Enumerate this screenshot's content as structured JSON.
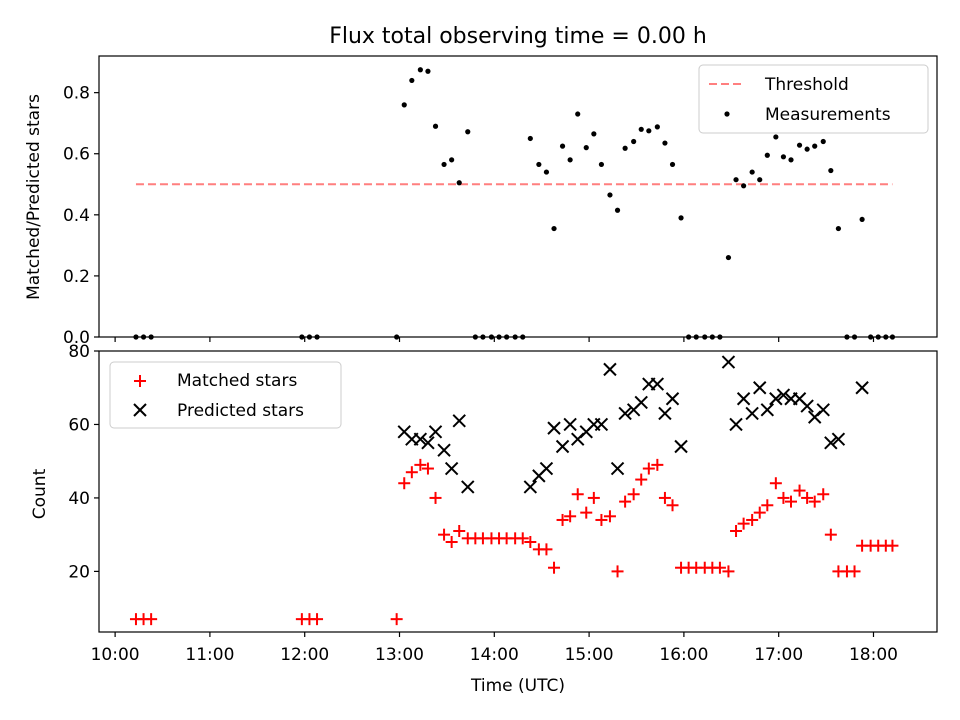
{
  "figure": {
    "title": "Flux total observing time = 0.00 h"
  },
  "chart_data": [
    {
      "type": "scatter",
      "ylabel": "Matched/Predicted stars",
      "xlim": [
        9.83,
        18.67
      ],
      "ylim": [
        0.0,
        0.92
      ],
      "yticks": [
        0.0,
        0.2,
        0.4,
        0.6,
        0.8
      ],
      "xtick_labels_shown": false,
      "legend": {
        "placement": "upper-right"
      },
      "threshold": {
        "name": "Threshold",
        "y": 0.5,
        "x_range": [
          10.22,
          18.2
        ],
        "color": "#ff7f7f",
        "style": "dashed"
      },
      "series": [
        {
          "name": "Measurements",
          "marker": "dot",
          "color": "#000000",
          "x": [
            10.22,
            10.3,
            10.38,
            11.97,
            12.05,
            12.13,
            12.97,
            13.05,
            13.13,
            13.22,
            13.3,
            13.38,
            13.47,
            13.55,
            13.63,
            13.72,
            13.8,
            13.88,
            13.97,
            14.05,
            14.13,
            14.22,
            14.3,
            14.38,
            14.47,
            14.55,
            14.63,
            14.72,
            14.8,
            14.88,
            14.97,
            15.05,
            15.13,
            15.22,
            15.3,
            15.38,
            15.47,
            15.55,
            15.63,
            15.72,
            15.8,
            15.88,
            15.97,
            16.05,
            16.13,
            16.22,
            16.3,
            16.38,
            16.47,
            16.55,
            16.63,
            16.72,
            16.8,
            16.88,
            16.97,
            17.05,
            17.13,
            17.22,
            17.3,
            17.38,
            17.47,
            17.55,
            17.63,
            17.72,
            17.8,
            17.88,
            17.97,
            18.05,
            18.13,
            18.2
          ],
          "y": [
            0.0,
            0.0,
            0.0,
            0.0,
            0.0,
            0.0,
            0.0,
            0.76,
            0.84,
            0.875,
            0.87,
            0.69,
            0.565,
            0.58,
            0.505,
            0.672,
            0.0,
            0.0,
            0.0,
            0.0,
            0.0,
            0.0,
            0.0,
            0.65,
            0.565,
            0.54,
            0.355,
            0.625,
            0.58,
            0.73,
            0.62,
            0.665,
            0.565,
            0.465,
            0.415,
            0.618,
            0.64,
            0.68,
            0.675,
            0.688,
            0.635,
            0.565,
            0.39,
            0.0,
            0.0,
            0.0,
            0.0,
            0.0,
            0.26,
            0.515,
            0.495,
            0.54,
            0.515,
            0.595,
            0.655,
            0.59,
            0.58,
            0.628,
            0.615,
            0.625,
            0.64,
            0.545,
            0.355,
            0.0,
            0.0,
            0.385,
            0.0,
            0.0,
            0.0,
            0.0
          ]
        }
      ]
    },
    {
      "type": "scatter",
      "xlabel": "Time (UTC)",
      "ylabel": "Count",
      "xlim": [
        9.83,
        18.67
      ],
      "ylim": [
        3.5,
        80.0
      ],
      "yticks": [
        20,
        40,
        60,
        80
      ],
      "xticks": [
        10,
        11,
        12,
        13,
        14,
        15,
        16,
        17,
        18
      ],
      "xtick_labels": [
        "10:00",
        "11:00",
        "12:00",
        "13:00",
        "14:00",
        "15:00",
        "16:00",
        "17:00",
        "18:00"
      ],
      "legend": {
        "placement": "upper-left"
      },
      "series": [
        {
          "name": "Matched stars",
          "marker": "plus",
          "color": "#ff0000",
          "x": [
            10.22,
            10.3,
            10.38,
            11.97,
            12.05,
            12.13,
            12.97,
            13.05,
            13.13,
            13.22,
            13.3,
            13.38,
            13.47,
            13.55,
            13.63,
            13.72,
            13.8,
            13.88,
            13.97,
            14.05,
            14.13,
            14.22,
            14.3,
            14.38,
            14.47,
            14.55,
            14.63,
            14.72,
            14.8,
            14.88,
            14.97,
            15.05,
            15.13,
            15.22,
            15.3,
            15.38,
            15.47,
            15.55,
            15.63,
            15.72,
            15.8,
            15.88,
            15.97,
            16.05,
            16.13,
            16.22,
            16.3,
            16.38,
            16.47,
            16.55,
            16.63,
            16.72,
            16.8,
            16.88,
            16.97,
            17.05,
            17.13,
            17.22,
            17.3,
            17.38,
            17.47,
            17.55,
            17.63,
            17.72,
            17.8,
            17.88,
            17.97,
            18.05,
            18.13,
            18.2
          ],
          "y": [
            7,
            7,
            7,
            7,
            7,
            7,
            7,
            44,
            47,
            49,
            48,
            40,
            30,
            28,
            31,
            29,
            29,
            29,
            29,
            29,
            29,
            29,
            29,
            28,
            26,
            26,
            21,
            34,
            35,
            41,
            36,
            40,
            34,
            35,
            20,
            39,
            41,
            45,
            48,
            49,
            40,
            38,
            21,
            21,
            21,
            21,
            21,
            21,
            20,
            31,
            33,
            34,
            36,
            38,
            44,
            40,
            39,
            42,
            40,
            39,
            41,
            30,
            20,
            20,
            20,
            27,
            27,
            27,
            27,
            27
          ]
        },
        {
          "name": "Predicted stars",
          "marker": "x",
          "color": "#000000",
          "x": [
            13.05,
            13.13,
            13.22,
            13.3,
            13.38,
            13.47,
            13.55,
            13.63,
            13.72,
            14.38,
            14.47,
            14.55,
            14.63,
            14.72,
            14.8,
            14.88,
            14.97,
            15.05,
            15.13,
            15.22,
            15.3,
            15.38,
            15.47,
            15.55,
            15.63,
            15.72,
            15.8,
            15.88,
            15.97,
            16.47,
            16.55,
            16.63,
            16.72,
            16.8,
            16.88,
            16.97,
            17.05,
            17.13,
            17.22,
            17.3,
            17.38,
            17.47,
            17.55,
            17.63,
            17.88
          ],
          "y": [
            58,
            56,
            56,
            55,
            58,
            53,
            48,
            61,
            43,
            43,
            46,
            48,
            59,
            54,
            60,
            56,
            58,
            60,
            60,
            75,
            48,
            63,
            64,
            66,
            71,
            71,
            63,
            67,
            54,
            77,
            60,
            67,
            63,
            70,
            64,
            67,
            68,
            67,
            67,
            65,
            62,
            64,
            55,
            56,
            70
          ]
        }
      ]
    }
  ]
}
